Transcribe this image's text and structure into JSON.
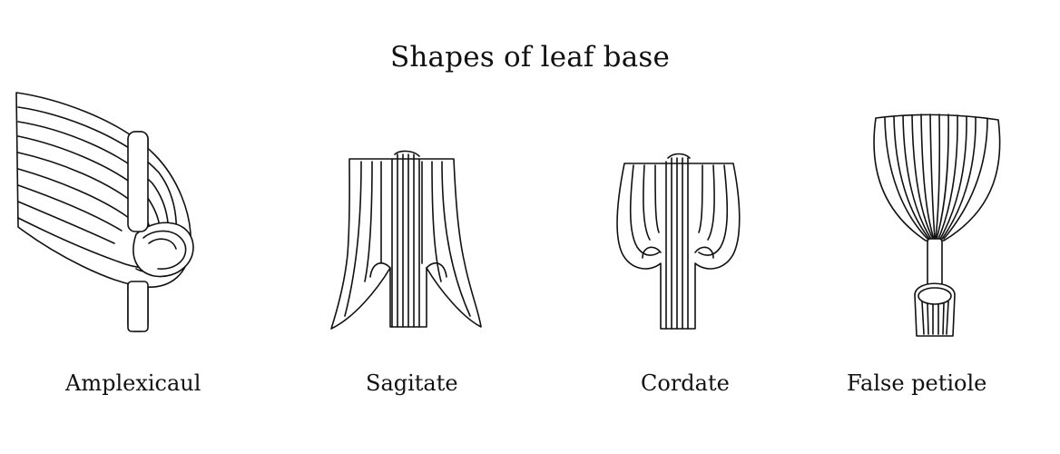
{
  "diagram": {
    "title": "Shapes of leaf base",
    "figures": [
      {
        "label": "Amplexicaul",
        "icon": "amplexicaul-leaf-base-icon"
      },
      {
        "label": "Sagitate",
        "icon": "sagitate-leaf-base-icon"
      },
      {
        "label": "Cordate",
        "icon": "cordate-leaf-base-icon"
      },
      {
        "label": "False petiole",
        "icon": "false-petiole-leaf-base-icon"
      }
    ]
  }
}
